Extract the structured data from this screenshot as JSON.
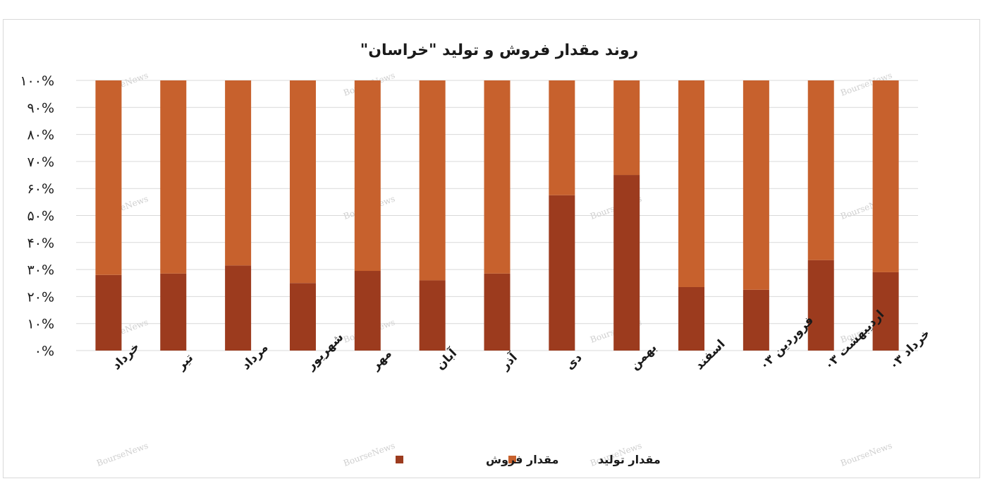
{
  "colors": {
    "sales": "#9c3b1e",
    "production": "#c7612d",
    "grid": "#d9d9d9",
    "text": "#1a1a1a",
    "watermark": "#cfcfcf"
  },
  "watermark": "BourseNews",
  "chart_data": {
    "type": "bar",
    "stacked": true,
    "percent": true,
    "title": "روند مقدار فروش و تولید \"خراسان\"",
    "categories": [
      "خرداد",
      "تیر",
      "مرداد",
      "شهریور",
      "مهر",
      "آبان",
      "آذر",
      "دی",
      "بهمن",
      "اسفند",
      "فروردین ۰۳",
      "اردیبهشت ۰۳",
      "خرداد ۰۳"
    ],
    "series": [
      {
        "name": "مقدار فروش",
        "values": [
          28,
          28.5,
          31.5,
          25,
          29.5,
          26,
          28.5,
          57.5,
          65,
          23.5,
          22.5,
          33.5,
          29
        ]
      },
      {
        "name": "مقدار تولید",
        "values": [
          72,
          71.5,
          68.5,
          75,
          70.5,
          74,
          71.5,
          42.5,
          35,
          76.5,
          77.5,
          66.5,
          71
        ]
      }
    ],
    "y_ticks": [
      "۰%",
      "۱۰%",
      "۲۰%",
      "۳۰%",
      "۴۰%",
      "۵۰%",
      "۶۰%",
      "۷۰%",
      "۸۰%",
      "۹۰%",
      "۱۰۰%"
    ],
    "ylim": [
      0,
      100
    ],
    "grid": true,
    "legend_position": "bottom"
  }
}
